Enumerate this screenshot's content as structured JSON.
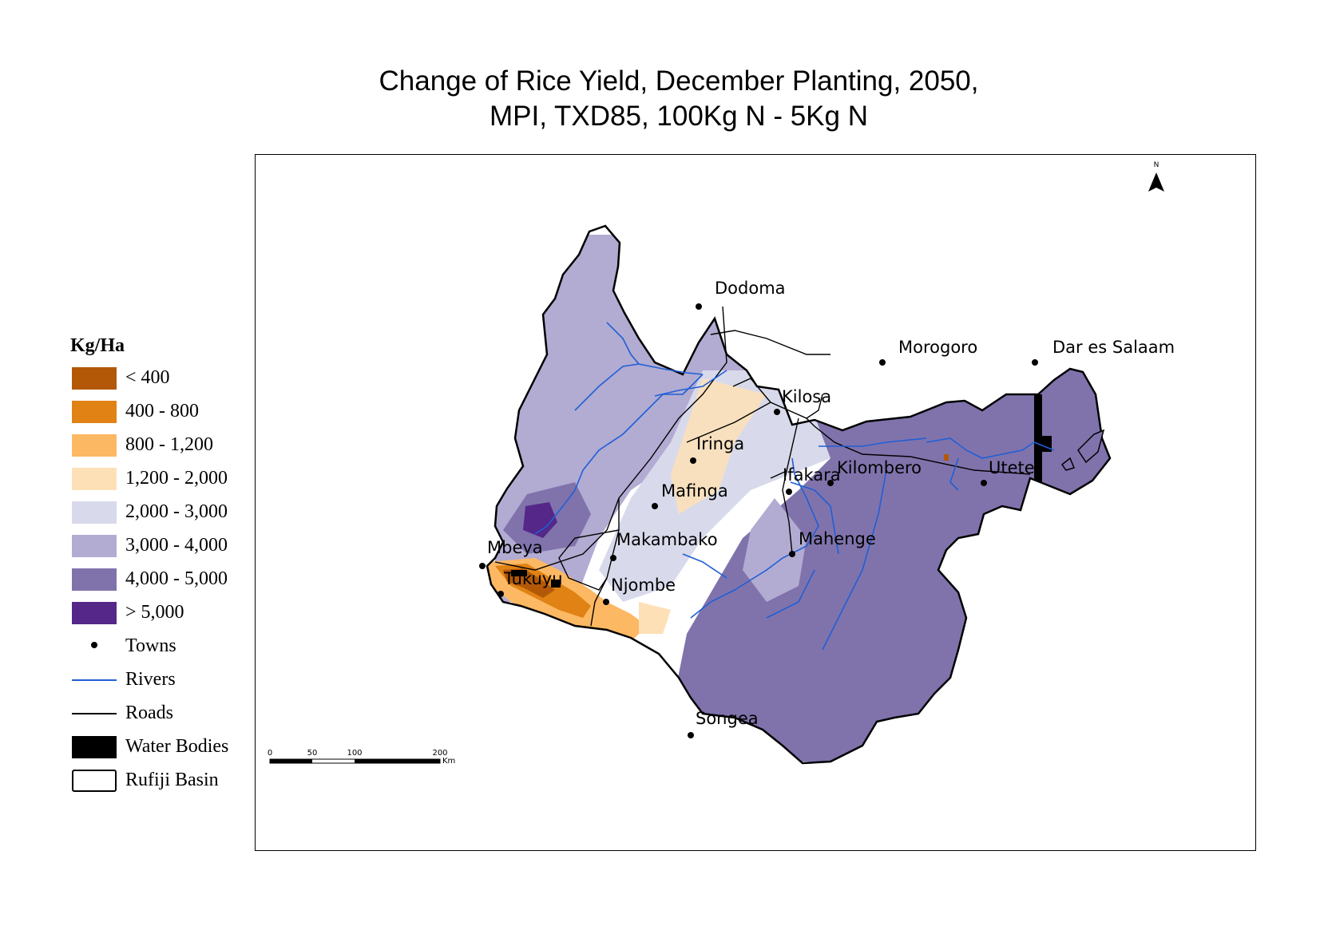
{
  "title": {
    "line1": "Change of Rice Yield, December Planting, 2050,",
    "line2": "MPI, TXD85, 100Kg N - 5Kg N"
  },
  "legend": {
    "title": "Kg/Ha",
    "classes": [
      {
        "label": "< 400",
        "color": "#b35806"
      },
      {
        "label": "400 - 800",
        "color": "#e08214"
      },
      {
        "label": "800 - 1,200",
        "color": "#fdb863"
      },
      {
        "label": "1,200 - 2,000",
        "color": "#fee0b6"
      },
      {
        "label": "2,000 - 3,000",
        "color": "#d8daeb"
      },
      {
        "label": "3,000 - 4,000",
        "color": "#b2abd2"
      },
      {
        "label": "4,000 - 5,000",
        "color": "#8073ac"
      },
      {
        "label": "> 5,000",
        "color": "#542788"
      }
    ],
    "towns_label": "Towns",
    "rivers_label": "Rivers",
    "roads_label": "Roads",
    "water_label": "Water Bodies",
    "basin_label": "Rufiji Basin",
    "river_color": "#1f5fd6",
    "water_color": "#000000"
  },
  "towns": [
    {
      "name": "Dodoma"
    },
    {
      "name": "Morogoro"
    },
    {
      "name": "Dar es Salaam"
    },
    {
      "name": "Kilosa"
    },
    {
      "name": "Iringa"
    },
    {
      "name": "Kilombero"
    },
    {
      "name": "Utete"
    },
    {
      "name": "Ifakara"
    },
    {
      "name": "Mafinga"
    },
    {
      "name": "Mahenge"
    },
    {
      "name": "Mbeya"
    },
    {
      "name": "Makambako"
    },
    {
      "name": "Tukuyu"
    },
    {
      "name": "Njombe"
    },
    {
      "name": "Songea"
    }
  ],
  "north_arrow": {
    "label": "N"
  },
  "scale_bar": {
    "ticks": [
      "0",
      "50",
      "100",
      "200"
    ],
    "unit": "Km"
  }
}
